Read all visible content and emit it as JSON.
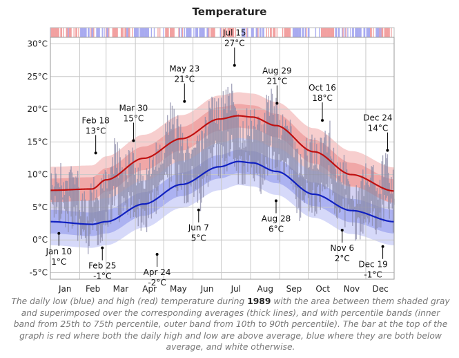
{
  "title": "Temperature",
  "caption": {
    "before": "The daily low (blue) and high (red) temperature during ",
    "year": "1989",
    "after": " with the area between them shaded gray and superimposed over the corresponding averages (thick lines), and with percentile bands (inner band from 25th to 75th percentile, outer band from 10th to 90th percentile). The bar at the top of the graph is red where both the daily high and low are above average, blue where they are both below average, and white otherwise."
  },
  "colors": {
    "high": "#c01010",
    "low": "#1020c0",
    "high_band_outer": "#f6c6c6",
    "high_band_inner": "#eea0a0",
    "low_band_outer": "#cfd2f8",
    "low_band_inner": "#a4aaf0",
    "daily_range": "#8a8aa8",
    "grid": "#c8c8c8",
    "status_above": "#f2a0a0",
    "status_below": "#a8aaf0"
  },
  "chart_data": {
    "type": "area",
    "title": "Temperature",
    "units": "°C",
    "y_ticks": [
      "-5°C",
      "0°C",
      "5°C",
      "10°C",
      "15°C",
      "20°C",
      "25°C",
      "30°C"
    ],
    "y_tick_values": [
      -5,
      0,
      5,
      10,
      15,
      20,
      25,
      30
    ],
    "ylim": [
      -6,
      31
    ],
    "x_labels": [
      "Jan",
      "Feb",
      "Mar",
      "Apr",
      "May",
      "Jun",
      "Jul",
      "Aug",
      "Sep",
      "Oct",
      "Nov",
      "Dec"
    ],
    "x_domain_days": [
      1,
      365
    ],
    "grid": true,
    "avg_high_keypoints": {
      "day": [
        1,
        45,
        60,
        100,
        140,
        180,
        200,
        215,
        240,
        280,
        320,
        365
      ],
      "temp": [
        7.6,
        7.8,
        9.2,
        12.5,
        15.5,
        18.5,
        19,
        18.8,
        17.5,
        13.5,
        10,
        7.5
      ]
    },
    "avg_low_keypoints": {
      "day": [
        1,
        45,
        60,
        100,
        140,
        180,
        200,
        215,
        240,
        280,
        320,
        365
      ],
      "temp": [
        2.8,
        2.4,
        2.8,
        5.5,
        8.5,
        11.2,
        12,
        11.8,
        10.5,
        7,
        4.5,
        2.8
      ]
    },
    "annotations": [
      {
        "date": "Jan 10",
        "value": "1°C",
        "day": 10,
        "temp": 1,
        "pos": "below"
      },
      {
        "date": "Feb 18",
        "value": "13°C",
        "day": 49,
        "temp": 13.3,
        "pos": "above"
      },
      {
        "date": "Feb 25",
        "value": "-1°C",
        "day": 56,
        "temp": -1.2,
        "pos": "below"
      },
      {
        "date": "Mar 30",
        "value": "15°C",
        "day": 89,
        "temp": 15.2,
        "pos": "above"
      },
      {
        "date": "Apr 24",
        "value": "-2°C",
        "day": 114,
        "temp": -2.2,
        "pos": "below"
      },
      {
        "date": "May 23",
        "value": "21°C",
        "day": 143,
        "temp": 21.2,
        "pos": "above"
      },
      {
        "date": "Jun 7",
        "value": "5°C",
        "day": 158,
        "temp": 4.6,
        "pos": "below"
      },
      {
        "date": "Jul 15",
        "value": "27°C",
        "day": 196,
        "temp": 26.7,
        "pos": "above"
      },
      {
        "date": "Aug 28",
        "value": "6°C",
        "day": 240,
        "temp": 6,
        "pos": "below"
      },
      {
        "date": "Aug 29",
        "value": "21°C",
        "day": 241,
        "temp": 20.9,
        "pos": "above"
      },
      {
        "date": "Oct 16",
        "value": "18°C",
        "day": 289,
        "temp": 18.3,
        "pos": "above"
      },
      {
        "date": "Nov 6",
        "value": "2°C",
        "day": 310,
        "temp": 1.5,
        "pos": "below"
      },
      {
        "date": "Dec 19",
        "value": "-1°C",
        "day": 353,
        "temp": -1,
        "pos": "below"
      },
      {
        "date": "Dec 24",
        "value": "14°C",
        "day": 358,
        "temp": 13.7,
        "pos": "above"
      }
    ]
  }
}
